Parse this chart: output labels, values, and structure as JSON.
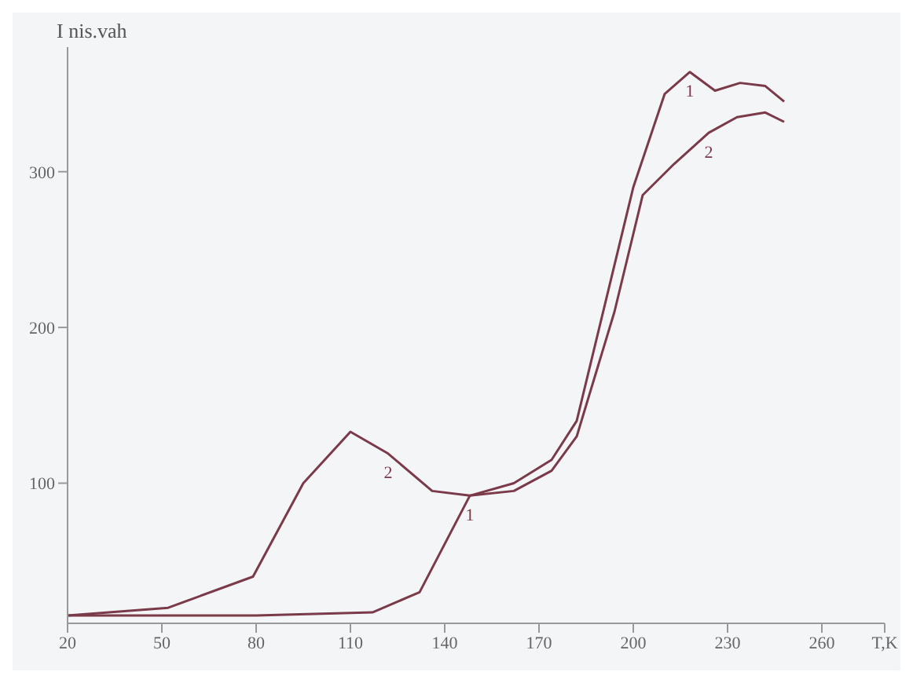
{
  "chart_data": {
    "type": "line",
    "ylabel": "I nis.vah",
    "xlim": [
      20,
      280
    ],
    "xticks": [
      20,
      50,
      80,
      110,
      140,
      170,
      200,
      230,
      260,
      {
        "value": 280,
        "label": "T,K"
      }
    ],
    "ylim": [
      10,
      380
    ],
    "yticks": [
      100,
      200,
      300
    ],
    "grid": false,
    "legend": false,
    "marker": "none",
    "line_style": "solid",
    "series": [
      {
        "color": "#7a3a4a",
        "x": [
          20,
          80,
          117,
          132,
          148,
          162,
          174,
          182,
          191,
          200,
          210,
          218,
          226,
          234,
          242,
          248
        ],
        "values": [
          15,
          15,
          17,
          30,
          92,
          100,
          115,
          140,
          215,
          290,
          350,
          364,
          352,
          357,
          355,
          345
        ]
      },
      {
        "color": "#7a3a4a",
        "x": [
          20,
          52,
          79,
          95,
          110,
          122,
          136,
          148,
          162,
          174,
          182,
          194,
          203,
          213,
          224,
          233,
          242,
          248
        ],
        "values": [
          15,
          20,
          40,
          100,
          133,
          119,
          95,
          92,
          95,
          108,
          130,
          210,
          285,
          305,
          325,
          335,
          338,
          332
        ]
      }
    ],
    "annotations": [
      {
        "text": "1",
        "x": 218,
        "y": 364
      },
      {
        "text": "2",
        "x": 224,
        "y": 325
      },
      {
        "text": "2",
        "x": 122,
        "y": 119
      },
      {
        "text": "1",
        "x": 148,
        "y": 92
      }
    ]
  }
}
